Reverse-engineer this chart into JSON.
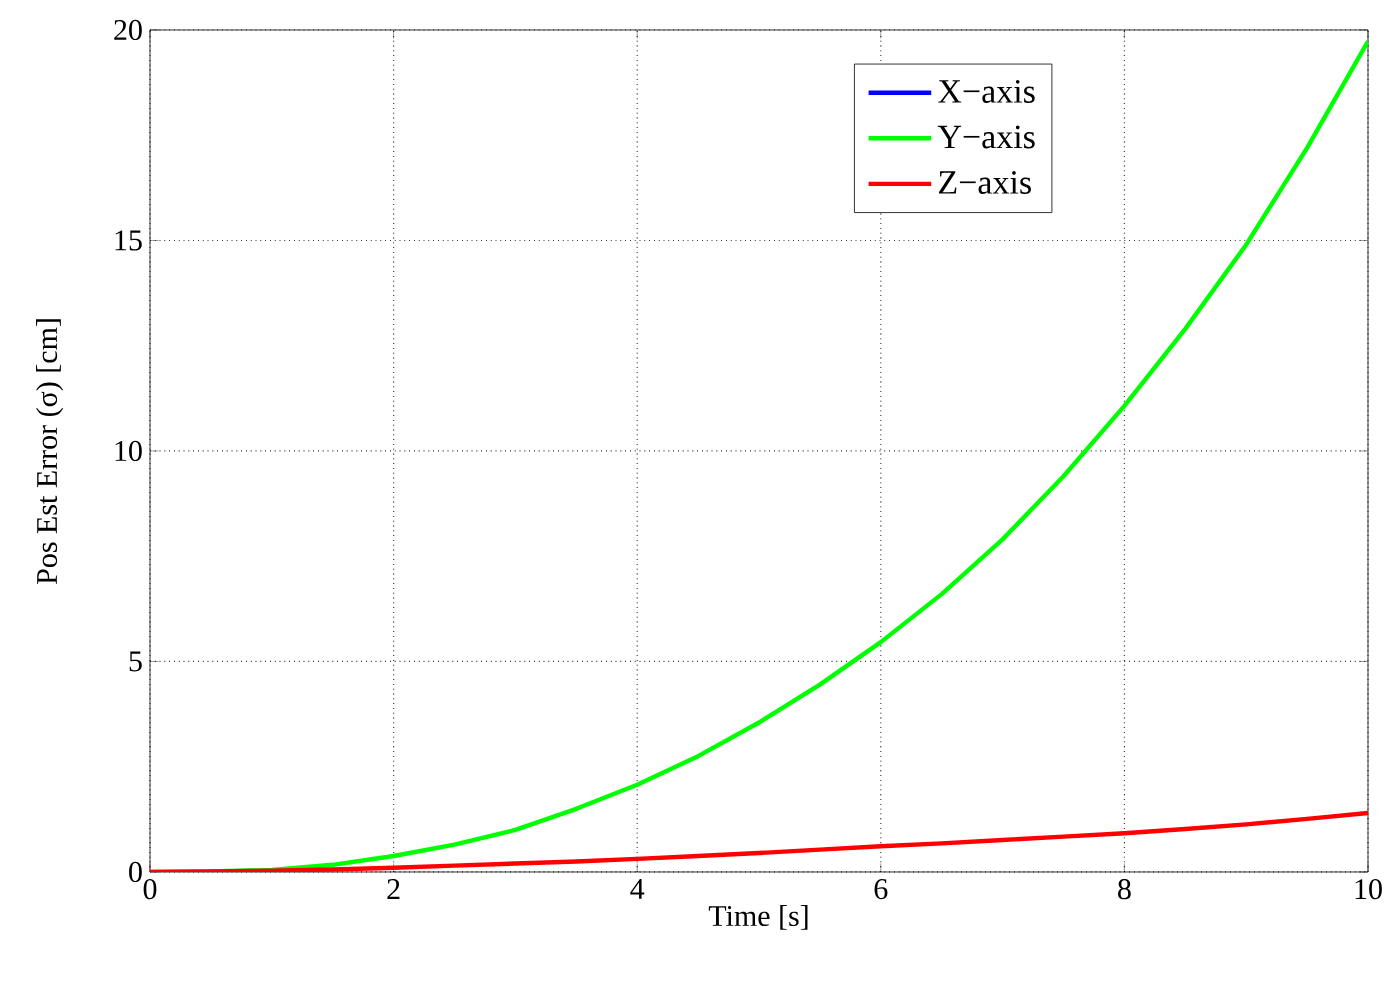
{
  "chart_data": {
    "type": "line",
    "xlabel": "Time [s]",
    "ylabel": "Pos Est Error (σ) [cm]",
    "xlim": [
      0,
      10
    ],
    "ylim": [
      0,
      20
    ],
    "xticks": [
      0,
      2,
      4,
      6,
      8,
      10
    ],
    "yticks": [
      0,
      5,
      10,
      15,
      20
    ],
    "grid": true,
    "legend": "top right",
    "line_style": "solid",
    "marker": "none",
    "x": [
      0,
      0.5,
      1,
      1.5,
      2,
      2.5,
      3,
      3.5,
      4,
      4.5,
      5,
      5.5,
      6,
      6.5,
      7,
      7.5,
      8,
      8.5,
      9,
      9.5,
      10
    ],
    "series": [
      {
        "name": "X−axis",
        "color": "#0000ff",
        "values": [
          null,
          null,
          null,
          null,
          null,
          null,
          null,
          null,
          null,
          null,
          null,
          null,
          null,
          null,
          null,
          null,
          null,
          null,
          null,
          null,
          null
        ]
      },
      {
        "name": "Y−axis",
        "color": "#00ff00",
        "values": [
          0,
          0.01,
          0.05,
          0.17,
          0.38,
          0.65,
          1.0,
          1.5,
          2.07,
          2.75,
          3.55,
          4.45,
          5.46,
          6.6,
          7.9,
          9.4,
          11.07,
          12.9,
          14.9,
          17.2,
          19.73
        ]
      },
      {
        "name": "Z−axis",
        "color": "#ff0000",
        "values": [
          0,
          0.01,
          0.03,
          0.06,
          0.1,
          0.15,
          0.2,
          0.25,
          0.31,
          0.38,
          0.45,
          0.53,
          0.61,
          0.68,
          0.76,
          0.84,
          0.92,
          1.02,
          1.13,
          1.26,
          1.4
        ]
      }
    ]
  }
}
